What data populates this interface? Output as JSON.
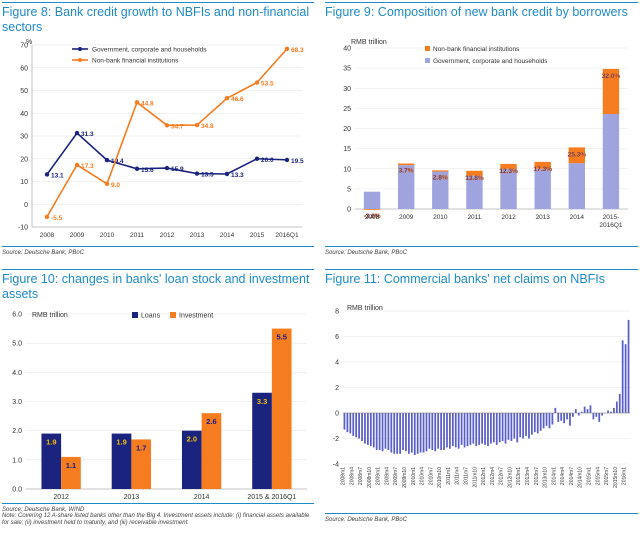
{
  "panels": {
    "fig8": {
      "title": "Figure 8: Bank credit growth to NBFIs and non-financial sectors",
      "source": "Source: Deutsche Bank, PBoC"
    },
    "fig9": {
      "title": "Figure 9: Composition of new bank credit by borrowers",
      "source": "Source: Deutsche Bank, PBoC"
    },
    "fig10": {
      "title": "Figure 10: changes in banks' loan stock and investment assets",
      "source": "Source: Deutsche Bank, WIND",
      "note": "Note: Covering 12 A-share listed banks other than the Big 4. Investment assets include: (i) financial assets available for sale; (ii) investment held to maturity, and (iii) receivable investment."
    },
    "fig11": {
      "title": "Figure 11: Commercial banks' net claims on NBFIs",
      "source": "Source: Deutsche Bank, PBoC"
    }
  },
  "chart_data": [
    {
      "id": "fig8",
      "type": "line",
      "ylabel": "%",
      "ylim": [
        -10,
        70
      ],
      "yticks": [
        -10,
        0,
        10,
        20,
        30,
        40,
        50,
        60,
        70
      ],
      "categories": [
        "2008",
        "2009",
        "2010",
        "2011",
        "2012",
        "2013",
        "2014",
        "2015",
        "2016Q1"
      ],
      "series": [
        {
          "name": "Government, corporate and households",
          "color": "#1a237e",
          "values": [
            13.1,
            31.3,
            19.4,
            15.6,
            15.9,
            13.5,
            13.3,
            20.0,
            19.5
          ],
          "labels": [
            "13.1",
            "31.3",
            "19.4",
            "15.6",
            "15.9",
            "13.5",
            "13.3",
            "20.0",
            "19.5"
          ]
        },
        {
          "name": "Non-bank financial institutions",
          "color": "#f57c1f",
          "values": [
            -5.5,
            17.3,
            9.0,
            44.8,
            34.7,
            34.8,
            46.6,
            53.5,
            68.3
          ],
          "labels": [
            "-5.5",
            "17.3",
            "9.0",
            "44.8",
            "34.7",
            "34.8",
            "46.6",
            "53.5",
            "68.3"
          ]
        }
      ]
    },
    {
      "id": "fig9",
      "type": "bar",
      "stacked": true,
      "ylabel": "RMB trillion",
      "ylim": [
        0,
        40
      ],
      "yticks": [
        0,
        5,
        10,
        15,
        20,
        25,
        30,
        35,
        40
      ],
      "categories": [
        "2008",
        "2009",
        "2010",
        "2011",
        "2012",
        "2013",
        "2014",
        "2015-2016Q1"
      ],
      "series": [
        {
          "name": "Non-bank financial institutions",
          "color": "#f57c1f",
          "values": [
            -0.2,
            0.4,
            0.3,
            1.2,
            1.2,
            1.7,
            3.9,
            11.2
          ]
        },
        {
          "name": "Government, corporate and households",
          "color": "#9fa4de",
          "values": [
            4.3,
            10.9,
            9.3,
            8.3,
            10.0,
            10.0,
            11.4,
            23.6
          ]
        }
      ],
      "share_labels": [
        "-3.6%",
        "3.7%",
        "2.8%",
        "13.8%",
        "12.3%",
        "17.3%",
        "25.3%",
        "32.0%"
      ]
    },
    {
      "id": "fig10",
      "type": "bar",
      "ylabel": "RMB trillion",
      "ylim": [
        0,
        6
      ],
      "yticks": [
        "0.0",
        "1.0",
        "2.0",
        "3.0",
        "4.0",
        "5.0",
        "6.0"
      ],
      "categories": [
        "2012",
        "2013",
        "2014",
        "2015 & 2016Q1"
      ],
      "series": [
        {
          "name": "Loans",
          "color": "#1a237e",
          "values": [
            1.9,
            1.9,
            2.0,
            3.3
          ],
          "labels": [
            "1.9",
            "1.9",
            "2.0",
            "3.3"
          ]
        },
        {
          "name": "Investment",
          "color": "#f57c1f",
          "values": [
            1.1,
            1.7,
            2.6,
            5.5
          ],
          "labels": [
            "1.1",
            "1.7",
            "2.6",
            "5.5"
          ]
        }
      ]
    },
    {
      "id": "fig11",
      "type": "bar",
      "ylabel": "RMB trillion",
      "ylim": [
        -4,
        8
      ],
      "yticks": [
        -4,
        -2,
        0,
        2,
        4,
        6,
        8
      ],
      "color": "#5a5fc8",
      "xtick_labels": [
        "2008m1",
        "2008m4",
        "2008m7",
        "2008m10",
        "2009m1",
        "2009m4",
        "2009m7",
        "2009m10",
        "2010m1",
        "2010m4",
        "2010m7",
        "2010m10",
        "2011m1",
        "2011m4",
        "2011m7",
        "2011m10",
        "2012m1",
        "2012m4",
        "2012m7",
        "2012m10",
        "2013m1",
        "2013m4",
        "2013m7",
        "2013m10",
        "2014m1",
        "2014m4",
        "2014m7",
        "2014m10",
        "2015m1",
        "2015m4",
        "2015m7",
        "2015m10",
        "2016m1"
      ],
      "values": [
        -1.3,
        -1.5,
        -1.6,
        -1.8,
        -1.9,
        -2.0,
        -2.2,
        -2.4,
        -2.5,
        -2.6,
        -2.7,
        -2.9,
        -2.9,
        -3.0,
        -2.8,
        -2.9,
        -3.1,
        -3.2,
        -3.2,
        -3.2,
        -2.9,
        -3.0,
        -3.2,
        -3.1,
        -3.3,
        -3.2,
        -3.1,
        -3.1,
        -3.0,
        -2.8,
        -2.9,
        -3.0,
        -2.8,
        -2.9,
        -2.9,
        -2.7,
        -2.8,
        -2.6,
        -2.7,
        -2.8,
        -2.5,
        -2.7,
        -2.6,
        -2.5,
        -2.4,
        -2.6,
        -2.5,
        -2.4,
        -2.5,
        -2.6,
        -2.4,
        -2.3,
        -2.5,
        -2.3,
        -2.2,
        -2.4,
        -2.1,
        -2.2,
        -2.0,
        -2.3,
        -1.9,
        -2.0,
        -1.8,
        -2.0,
        -1.7,
        -1.5,
        -1.6,
        -1.4,
        -1.2,
        -1.0,
        -1.2,
        -0.9,
        0.4,
        -0.7,
        -0.6,
        -0.8,
        -0.5,
        -1.0,
        -0.3,
        0.3,
        -0.2,
        0.1,
        0.5,
        0.3,
        0.6,
        -0.5,
        -0.3,
        -0.7,
        -0.2,
        0.0,
        0.2,
        0.1,
        0.4,
        0.9,
        1.5,
        5.7,
        5.4,
        7.3
      ]
    }
  ]
}
